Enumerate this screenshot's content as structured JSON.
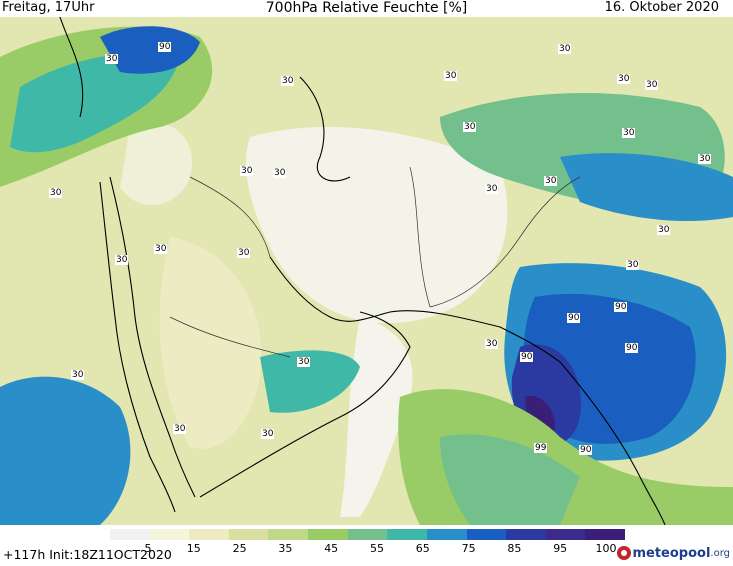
{
  "header": {
    "left": "Freitag, 17Uhr",
    "title": "700hPa Relative Feuchte [%]",
    "right": "16. Oktober 2020"
  },
  "footer": {
    "run_info": "+117h Init:18Z11OCT2020",
    "logo": "meteopool",
    "logo_suffix": ".org"
  },
  "colorbar": {
    "ticks": [
      "5",
      "15",
      "25",
      "35",
      "45",
      "55",
      "65",
      "75",
      "85",
      "95",
      "100"
    ],
    "colors": [
      "#f2f2f2",
      "#f5f5dc",
      "#ecebc2",
      "#d9dfa0",
      "#c0d88a",
      "#99cc66",
      "#73c08c",
      "#3fb8a8",
      "#2a8fc8",
      "#1a5fc0",
      "#2a3aa0",
      "#3c2a8c",
      "#3a1e78"
    ]
  },
  "map_labels": [
    {
      "text": "30",
      "id": "c1"
    },
    {
      "text": "30",
      "id": "c2"
    },
    {
      "text": "30",
      "id": "c3"
    },
    {
      "text": "30",
      "id": "c4"
    },
    {
      "text": "30",
      "id": "c5"
    },
    {
      "text": "30",
      "id": "c6"
    },
    {
      "text": "30",
      "id": "c7"
    },
    {
      "text": "30",
      "id": "c8"
    },
    {
      "text": "30",
      "id": "c9"
    },
    {
      "text": "30",
      "id": "c10"
    },
    {
      "text": "30",
      "id": "c11"
    },
    {
      "text": "30",
      "id": "c12"
    },
    {
      "text": "30",
      "id": "c13"
    },
    {
      "text": "30",
      "id": "c14"
    },
    {
      "text": "30",
      "id": "c15"
    },
    {
      "text": "30",
      "id": "c16"
    },
    {
      "text": "30",
      "id": "c17"
    },
    {
      "text": "30",
      "id": "c18"
    },
    {
      "text": "30",
      "id": "c19"
    },
    {
      "text": "30",
      "id": "c20"
    },
    {
      "text": "30",
      "id": "c21"
    },
    {
      "text": "30",
      "id": "c22"
    },
    {
      "text": "30",
      "id": "c23"
    },
    {
      "text": "30",
      "id": "c24"
    },
    {
      "text": "90",
      "id": "c25"
    },
    {
      "text": "90",
      "id": "c26"
    },
    {
      "text": "90",
      "id": "c27"
    },
    {
      "text": "90",
      "id": "c28"
    },
    {
      "text": "90",
      "id": "c29"
    },
    {
      "text": "99",
      "id": "c30"
    },
    {
      "text": "90",
      "id": "c31"
    }
  ]
}
